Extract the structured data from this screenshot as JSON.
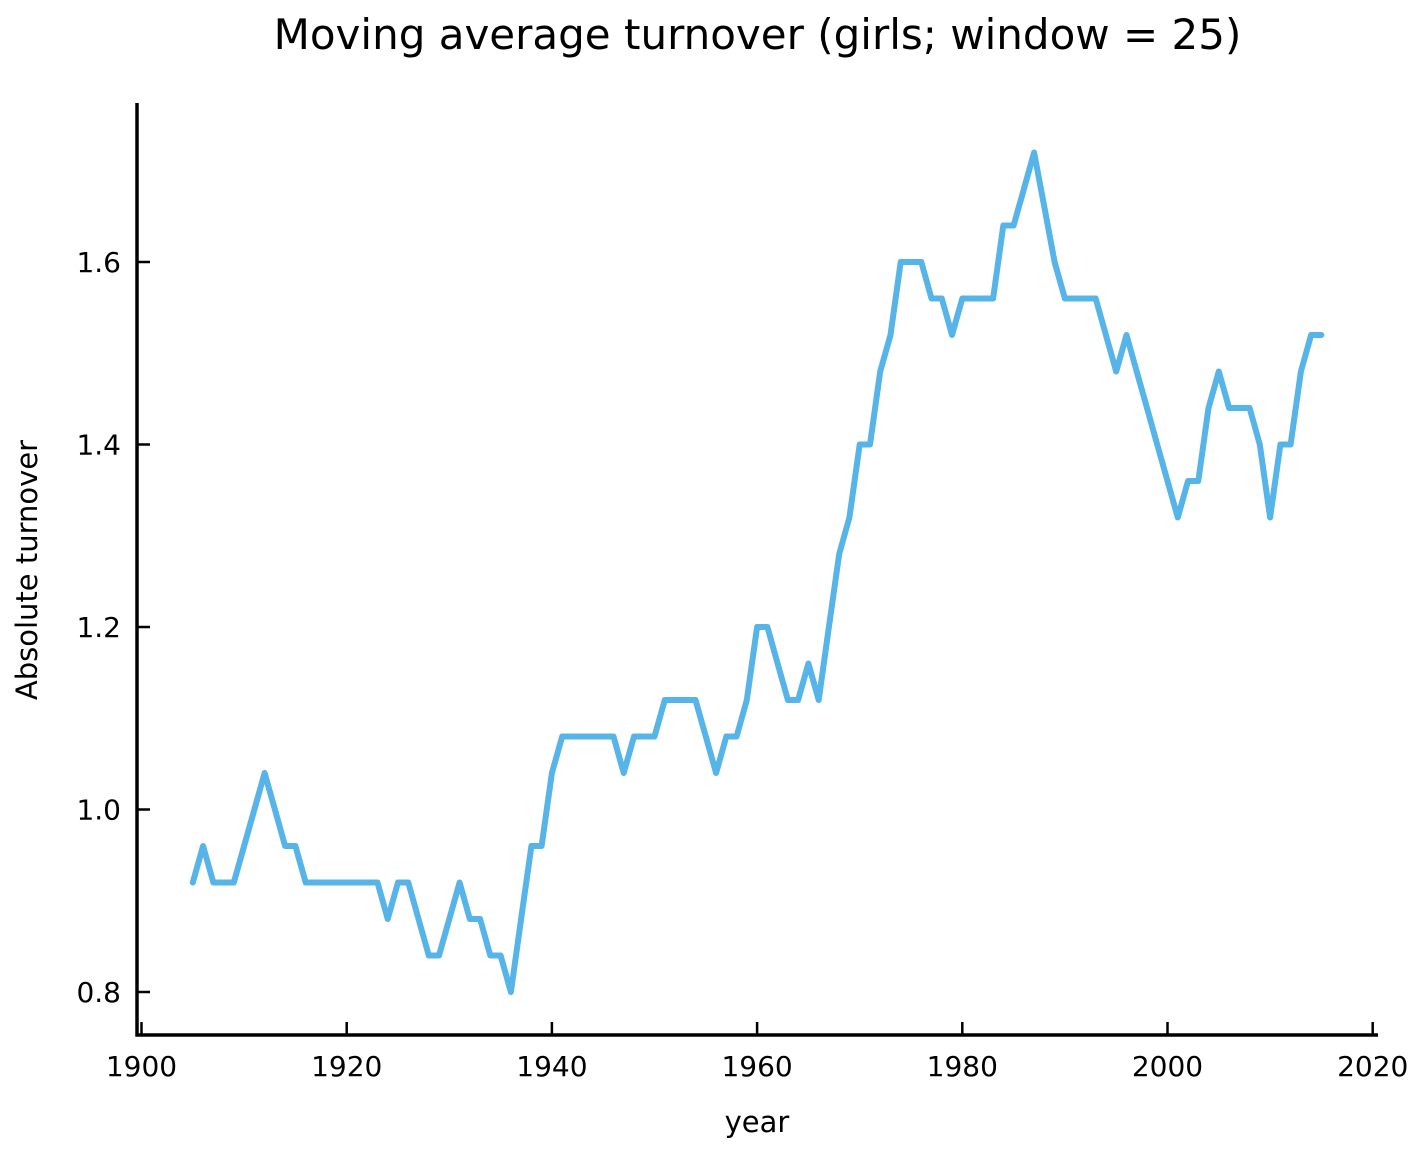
{
  "chart_data": {
    "type": "line",
    "title": "Moving average turnover (girls; window = 25)",
    "xlabel": "year",
    "ylabel": "Absolute turnover",
    "window": 25,
    "grid": false,
    "legend": "none",
    "line_color": "#56B4E9",
    "axis_color": "#000000",
    "background_color": "#ffffff",
    "xlim": [
      1899.6,
      2020.5
    ],
    "ylim": [
      0.752,
      1.774
    ],
    "xticks": [
      1900,
      1920,
      1940,
      1960,
      1980,
      2000,
      2020
    ],
    "xtick_labels": [
      "1900",
      "1920",
      "1940",
      "1960",
      "1980",
      "2000",
      "2020"
    ],
    "yticks": [
      0.8,
      1.0,
      1.2,
      1.4,
      1.6
    ],
    "ytick_labels": [
      "0.8",
      "1.0",
      "1.2",
      "1.4",
      "1.6"
    ],
    "x": [
      1905,
      1906,
      1907,
      1908,
      1909,
      1910,
      1911,
      1912,
      1913,
      1914,
      1915,
      1916,
      1917,
      1918,
      1919,
      1920,
      1921,
      1922,
      1923,
      1924,
      1925,
      1926,
      1927,
      1928,
      1929,
      1930,
      1931,
      1932,
      1933,
      1934,
      1935,
      1936,
      1937,
      1938,
      1939,
      1940,
      1941,
      1942,
      1943,
      1944,
      1945,
      1946,
      1947,
      1948,
      1949,
      1950,
      1951,
      1952,
      1953,
      1954,
      1955,
      1956,
      1957,
      1958,
      1959,
      1960,
      1961,
      1962,
      1963,
      1964,
      1965,
      1966,
      1967,
      1968,
      1969,
      1970,
      1971,
      1972,
      1973,
      1974,
      1975,
      1976,
      1977,
      1978,
      1979,
      1980,
      1981,
      1982,
      1983,
      1984,
      1985,
      1986,
      1987,
      1988,
      1989,
      1990,
      1991,
      1992,
      1993,
      1994,
      1995,
      1996,
      1997,
      1998,
      1999,
      2000,
      2001,
      2002,
      2003,
      2004,
      2005,
      2006,
      2007,
      2008,
      2009,
      2010,
      2011,
      2012,
      2013,
      2014,
      2015
    ],
    "y": [
      0.92,
      0.96,
      0.92,
      0.92,
      0.92,
      0.96,
      1.0,
      1.04,
      1.0,
      0.96,
      0.96,
      0.92,
      0.92,
      0.92,
      0.92,
      0.92,
      0.92,
      0.92,
      0.92,
      0.88,
      0.92,
      0.92,
      0.88,
      0.84,
      0.84,
      0.88,
      0.92,
      0.88,
      0.88,
      0.84,
      0.84,
      0.8,
      0.88,
      0.96,
      0.96,
      1.04,
      1.08,
      1.08,
      1.08,
      1.08,
      1.08,
      1.08,
      1.04,
      1.08,
      1.08,
      1.08,
      1.12,
      1.12,
      1.12,
      1.12,
      1.08,
      1.04,
      1.08,
      1.08,
      1.12,
      1.2,
      1.2,
      1.16,
      1.12,
      1.12,
      1.16,
      1.12,
      1.2,
      1.28,
      1.32,
      1.4,
      1.4,
      1.48,
      1.52,
      1.6,
      1.6,
      1.6,
      1.56,
      1.56,
      1.52,
      1.56,
      1.56,
      1.56,
      1.56,
      1.64,
      1.64,
      1.68,
      1.72,
      1.66,
      1.6,
      1.56,
      1.56,
      1.56,
      1.56,
      1.52,
      1.48,
      1.52,
      1.48,
      1.44,
      1.4,
      1.36,
      1.32,
      1.36,
      1.36,
      1.44,
      1.48,
      1.44,
      1.44,
      1.44,
      1.4,
      1.32,
      1.4,
      1.4,
      1.48,
      1.52,
      1.52
    ]
  }
}
